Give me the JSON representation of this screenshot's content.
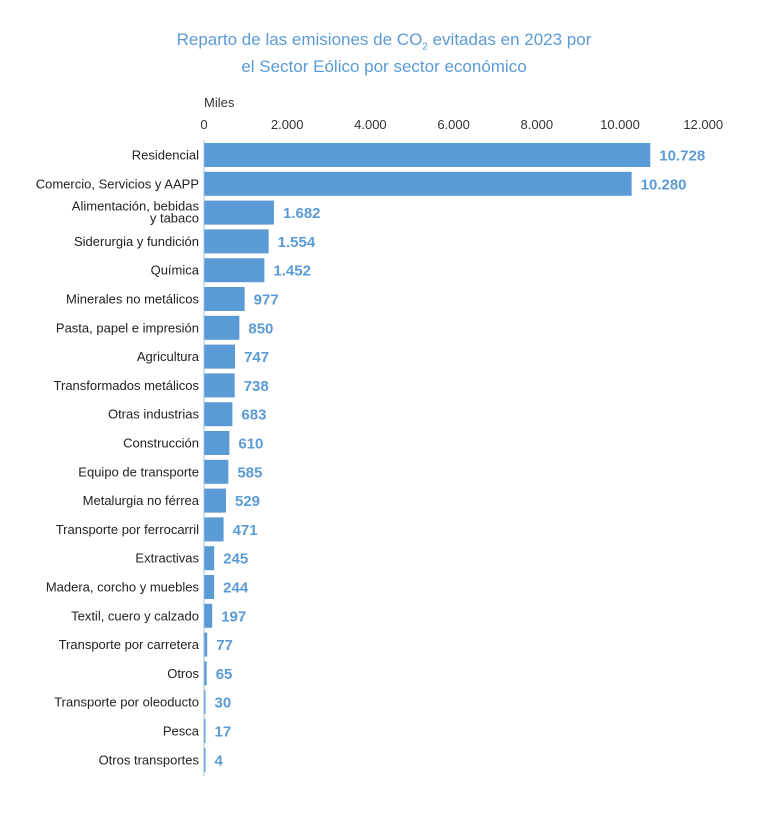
{
  "chart_data": {
    "type": "bar",
    "orientation": "horizontal",
    "title_part1": "Reparto de las emisiones de CO",
    "title_sub": "2",
    "title_part2": " evitadas en 2023 por",
    "title_line2": "el Sector Eólico por sector económico",
    "xlabel": "Miles",
    "xlim": [
      0,
      12000
    ],
    "xticks": [
      "0",
      "2.000",
      "4.000",
      "6.000",
      "8.000",
      "10.000",
      "12.000"
    ],
    "grid": false,
    "bar_color": "#5b9bd5",
    "categories": [
      "Residencial",
      "Comercio, Servicios y AAPP",
      "Alimentación, bebidas|y tabaco",
      "Siderurgia y fundición",
      "Química",
      "Minerales no metálicos",
      "Pasta, papel e impresión",
      "Agricultura",
      "Transformados metálicos",
      "Otras industrias",
      "Construcción",
      "Equipo de transporte",
      "Metalurgia no férrea",
      "Transporte por ferrocarril",
      "Extractivas",
      "Madera, corcho y muebles",
      "Textil, cuero y calzado",
      "Transporte por carretera",
      "Otros",
      "Transporte por oleoducto",
      "Pesca",
      "Otros transportes"
    ],
    "values": [
      10728,
      10280,
      1682,
      1554,
      1452,
      977,
      850,
      747,
      738,
      683,
      610,
      585,
      529,
      471,
      245,
      244,
      197,
      77,
      65,
      30,
      17,
      4
    ],
    "labels": [
      "10.728",
      "10.280",
      "1.682",
      "1.554",
      "1.452",
      "977",
      "850",
      "747",
      "738",
      "683",
      "610",
      "585",
      "529",
      "471",
      "245",
      "244",
      "197",
      "77",
      "65",
      "30",
      "17",
      "4"
    ]
  }
}
